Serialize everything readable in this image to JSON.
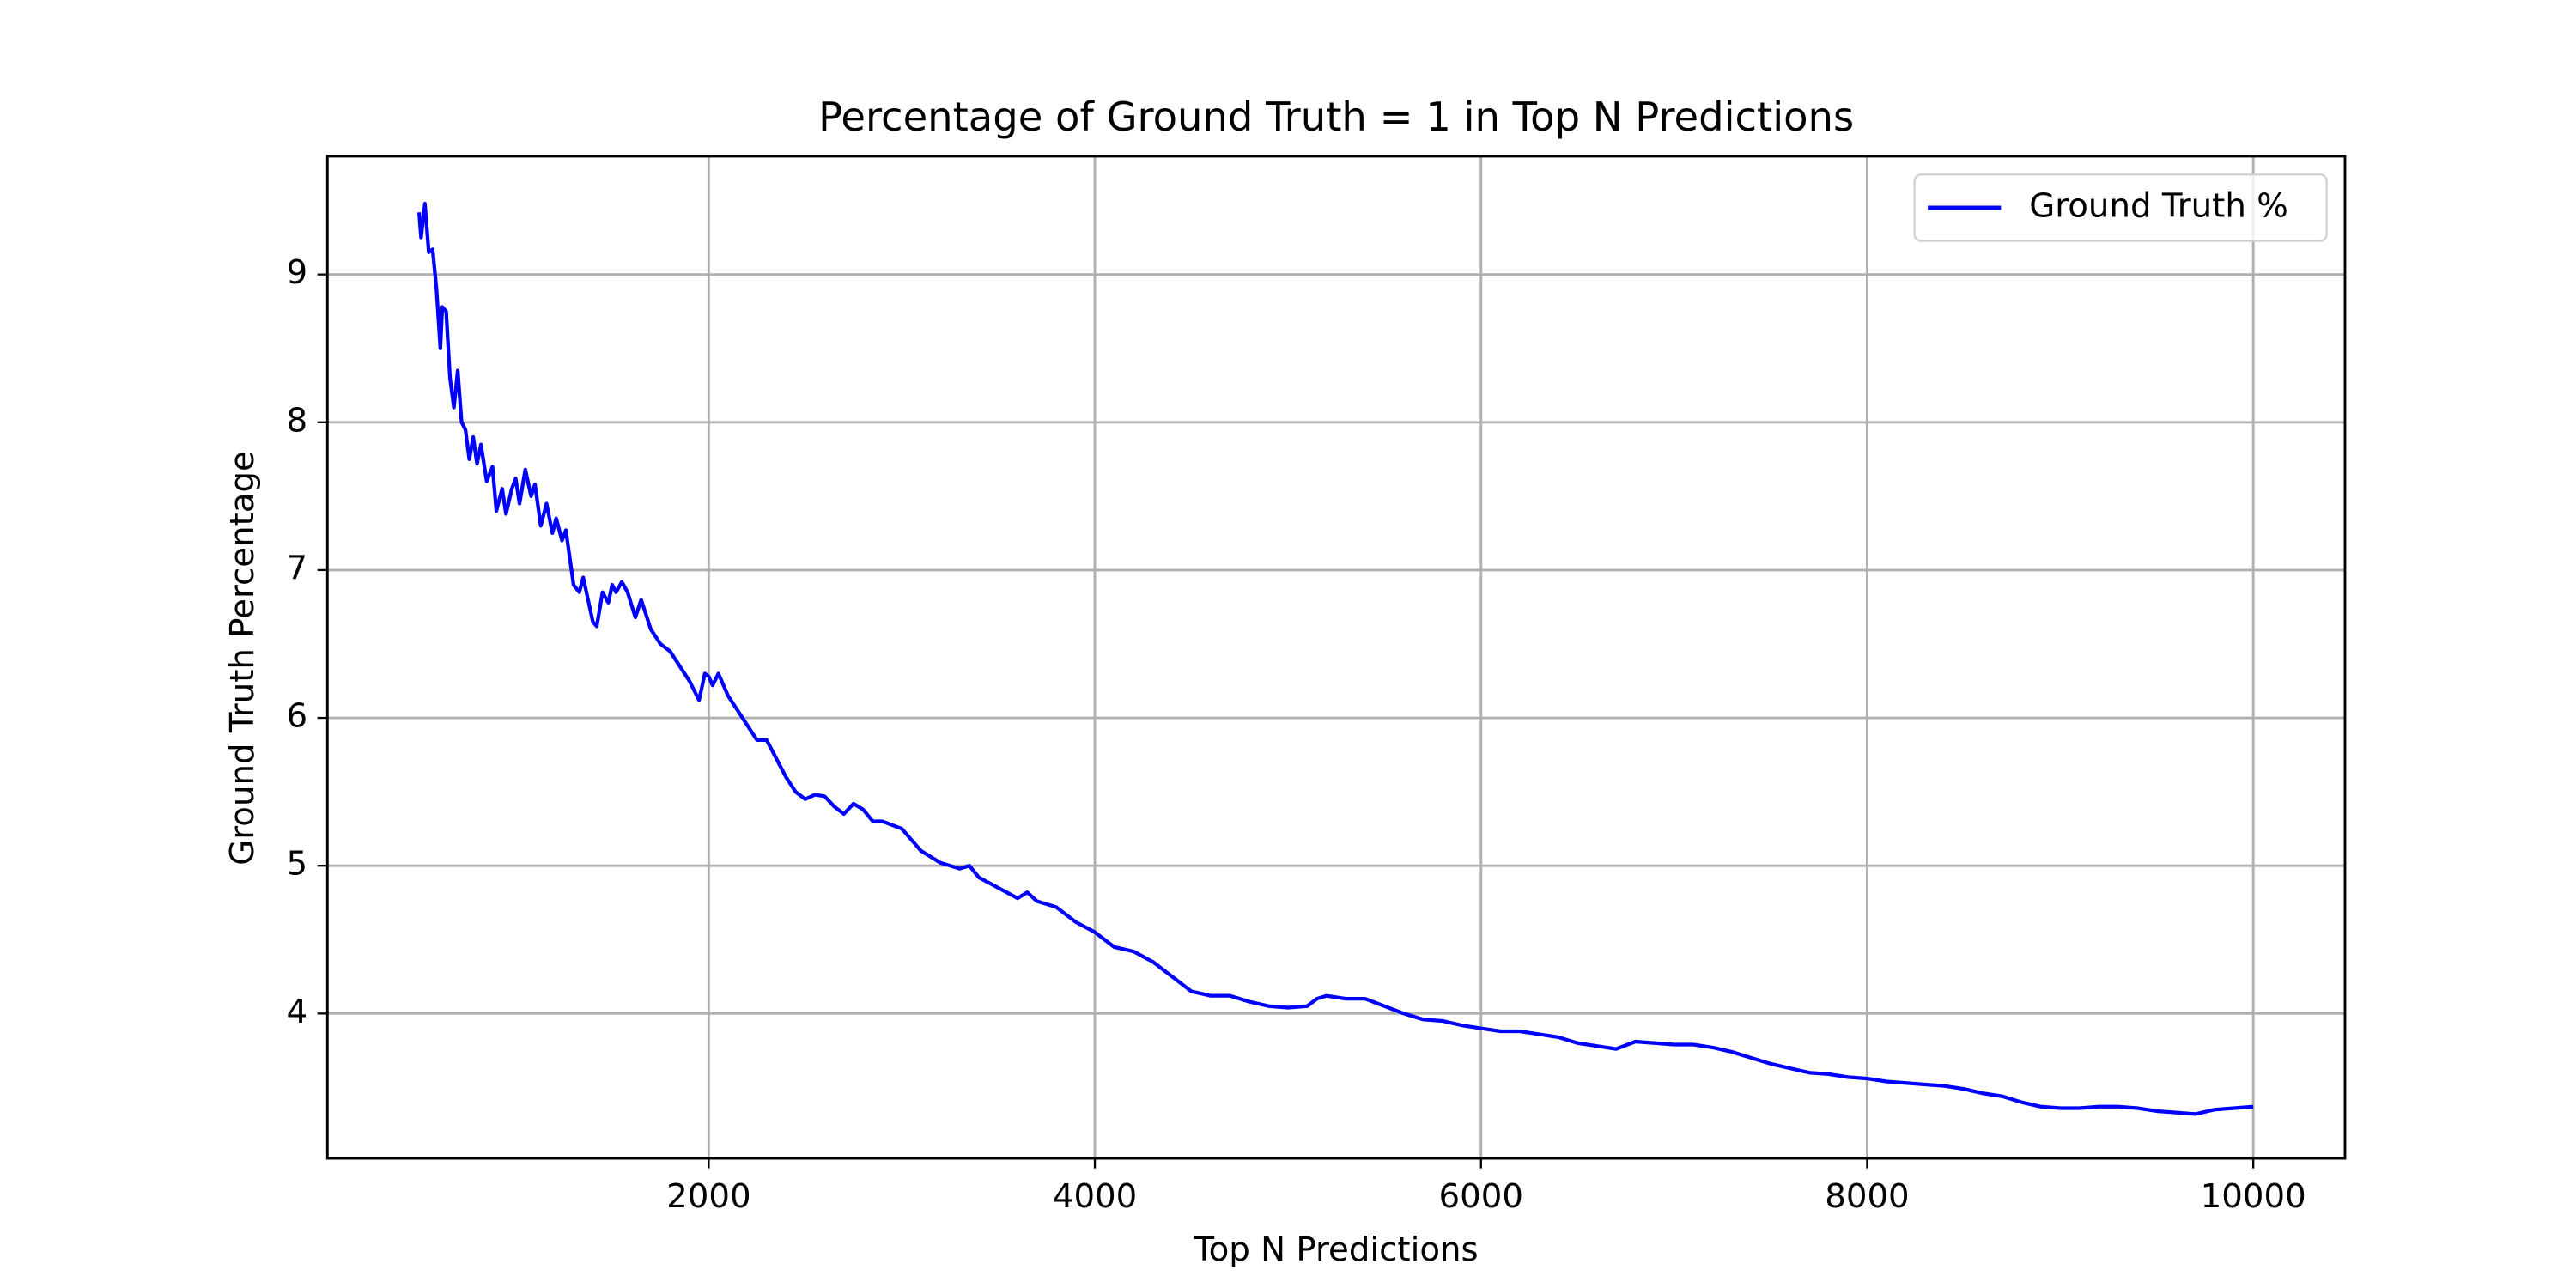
{
  "chart_data": {
    "type": "line",
    "title": "Percentage of Ground Truth = 1 in Top N Predictions",
    "x_label": "Top N Predictions",
    "y_label": "Ground Truth Percentage",
    "xlim": [
      25,
      10475
    ],
    "xticks": [
      2000,
      4000,
      6000,
      8000,
      10000
    ],
    "ylim": [
      3.02,
      9.8
    ],
    "yticks": [
      4,
      5,
      6,
      7,
      8,
      9
    ],
    "grid": true,
    "legend": "upper right",
    "x": [
      500,
      510,
      530,
      550,
      570,
      590,
      610,
      620,
      640,
      660,
      680,
      700,
      720,
      740,
      760,
      780,
      800,
      820,
      850,
      880,
      900,
      930,
      950,
      980,
      1000,
      1020,
      1050,
      1080,
      1100,
      1130,
      1160,
      1190,
      1210,
      1240,
      1260,
      1300,
      1330,
      1350,
      1400,
      1420,
      1450,
      1480,
      1500,
      1520,
      1550,
      1580,
      1620,
      1650,
      1700,
      1750,
      1800,
      1850,
      1900,
      1950,
      1980,
      2000,
      2020,
      2050,
      2100,
      2200,
      2250,
      2300,
      2400,
      2450,
      2500,
      2550,
      2600,
      2650,
      2700,
      2750,
      2800,
      2850,
      2900,
      3000,
      3100,
      3200,
      3300,
      3350,
      3400,
      3500,
      3600,
      3650,
      3700,
      3800,
      3900,
      4000,
      4100,
      4200,
      4300,
      4400,
      4500,
      4600,
      4700,
      4800,
      4900,
      5000,
      5100,
      5150,
      5200,
      5300,
      5400,
      5500,
      5600,
      5700,
      5800,
      5900,
      6000,
      6100,
      6200,
      6300,
      6400,
      6500,
      6600,
      6700,
      6800,
      6900,
      7000,
      7100,
      7200,
      7300,
      7400,
      7500,
      7600,
      7700,
      7800,
      7900,
      8000,
      8100,
      8200,
      8300,
      8400,
      8500,
      8600,
      8700,
      8800,
      8900,
      9000,
      9100,
      9200,
      9300,
      9400,
      9500,
      9600,
      9700,
      9800,
      9900,
      10000
    ],
    "series": [
      {
        "name": "Ground Truth %",
        "color": "#0000ff",
        "values": [
          9.42,
          9.25,
          9.48,
          9.15,
          9.17,
          8.9,
          8.5,
          8.78,
          8.75,
          8.3,
          8.1,
          8.35,
          8.0,
          7.95,
          7.75,
          7.9,
          7.72,
          7.85,
          7.6,
          7.7,
          7.4,
          7.55,
          7.38,
          7.55,
          7.62,
          7.45,
          7.68,
          7.5,
          7.58,
          7.3,
          7.45,
          7.25,
          7.35,
          7.2,
          7.27,
          6.9,
          6.85,
          6.95,
          6.65,
          6.62,
          6.85,
          6.78,
          6.9,
          6.85,
          6.92,
          6.85,
          6.68,
          6.8,
          6.6,
          6.5,
          6.45,
          6.35,
          6.25,
          6.12,
          6.3,
          6.28,
          6.22,
          6.3,
          6.15,
          5.95,
          5.85,
          5.85,
          5.6,
          5.5,
          5.45,
          5.48,
          5.47,
          5.4,
          5.35,
          5.42,
          5.38,
          5.3,
          5.3,
          5.25,
          5.1,
          5.02,
          4.98,
          5.0,
          4.92,
          4.85,
          4.78,
          4.82,
          4.76,
          4.72,
          4.62,
          4.55,
          4.45,
          4.42,
          4.35,
          4.25,
          4.15,
          4.12,
          4.12,
          4.08,
          4.05,
          4.04,
          4.05,
          4.1,
          4.12,
          4.1,
          4.1,
          4.05,
          4.0,
          3.96,
          3.95,
          3.92,
          3.9,
          3.88,
          3.88,
          3.86,
          3.84,
          3.8,
          3.78,
          3.76,
          3.81,
          3.8,
          3.79,
          3.79,
          3.77,
          3.74,
          3.7,
          3.66,
          3.63,
          3.6,
          3.59,
          3.57,
          3.56,
          3.54,
          3.53,
          3.52,
          3.51,
          3.49,
          3.46,
          3.44,
          3.4,
          3.37,
          3.36,
          3.36,
          3.37,
          3.37,
          3.36,
          3.34,
          3.33,
          3.32,
          3.35,
          3.36,
          3.37
        ]
      }
    ]
  }
}
